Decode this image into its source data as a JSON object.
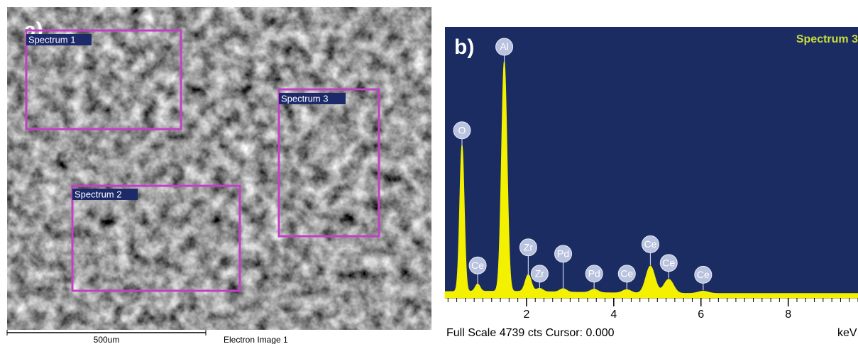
{
  "panel_a": {
    "label": "a)",
    "regions": [
      {
        "label": "Spectrum 1"
      },
      {
        "label": "Spectrum 2"
      },
      {
        "label": "Spectrum 3"
      }
    ],
    "scale_bar": "500um",
    "caption": "Electron Image 1"
  },
  "panel_b": {
    "label": "b)",
    "spectrum_name": "Spectrum 3",
    "xlim": [
      0.13,
      9.6
    ],
    "ylim": [
      0,
      4739
    ],
    "xticks": [
      2,
      4,
      6,
      8
    ],
    "x_unit": "keV",
    "footer": "Full Scale 4739 cts Cursor: 0.000",
    "peaks": [
      {
        "label": "O",
        "energy": 0.52,
        "counts": 2600
      },
      {
        "label": "Ce",
        "energy": 0.88,
        "counts": 130
      },
      {
        "label": "Al",
        "energy": 1.49,
        "counts": 4080
      },
      {
        "label": "Zr",
        "energy": 2.04,
        "counts": 300
      },
      {
        "label": "Zr",
        "energy": 2.3,
        "counts": 60
      },
      {
        "label": "Pd",
        "energy": 2.84,
        "counts": 60
      },
      {
        "label": "Pd",
        "energy": 3.55,
        "counts": 60
      },
      {
        "label": "Ce",
        "energy": 4.3,
        "counts": 60
      },
      {
        "label": "Ce",
        "energy": 4.84,
        "counts": 480
      },
      {
        "label": "Ce",
        "energy": 5.26,
        "counts": 250
      },
      {
        "label": "Ce",
        "energy": 6.05,
        "counts": 40
      }
    ]
  }
}
